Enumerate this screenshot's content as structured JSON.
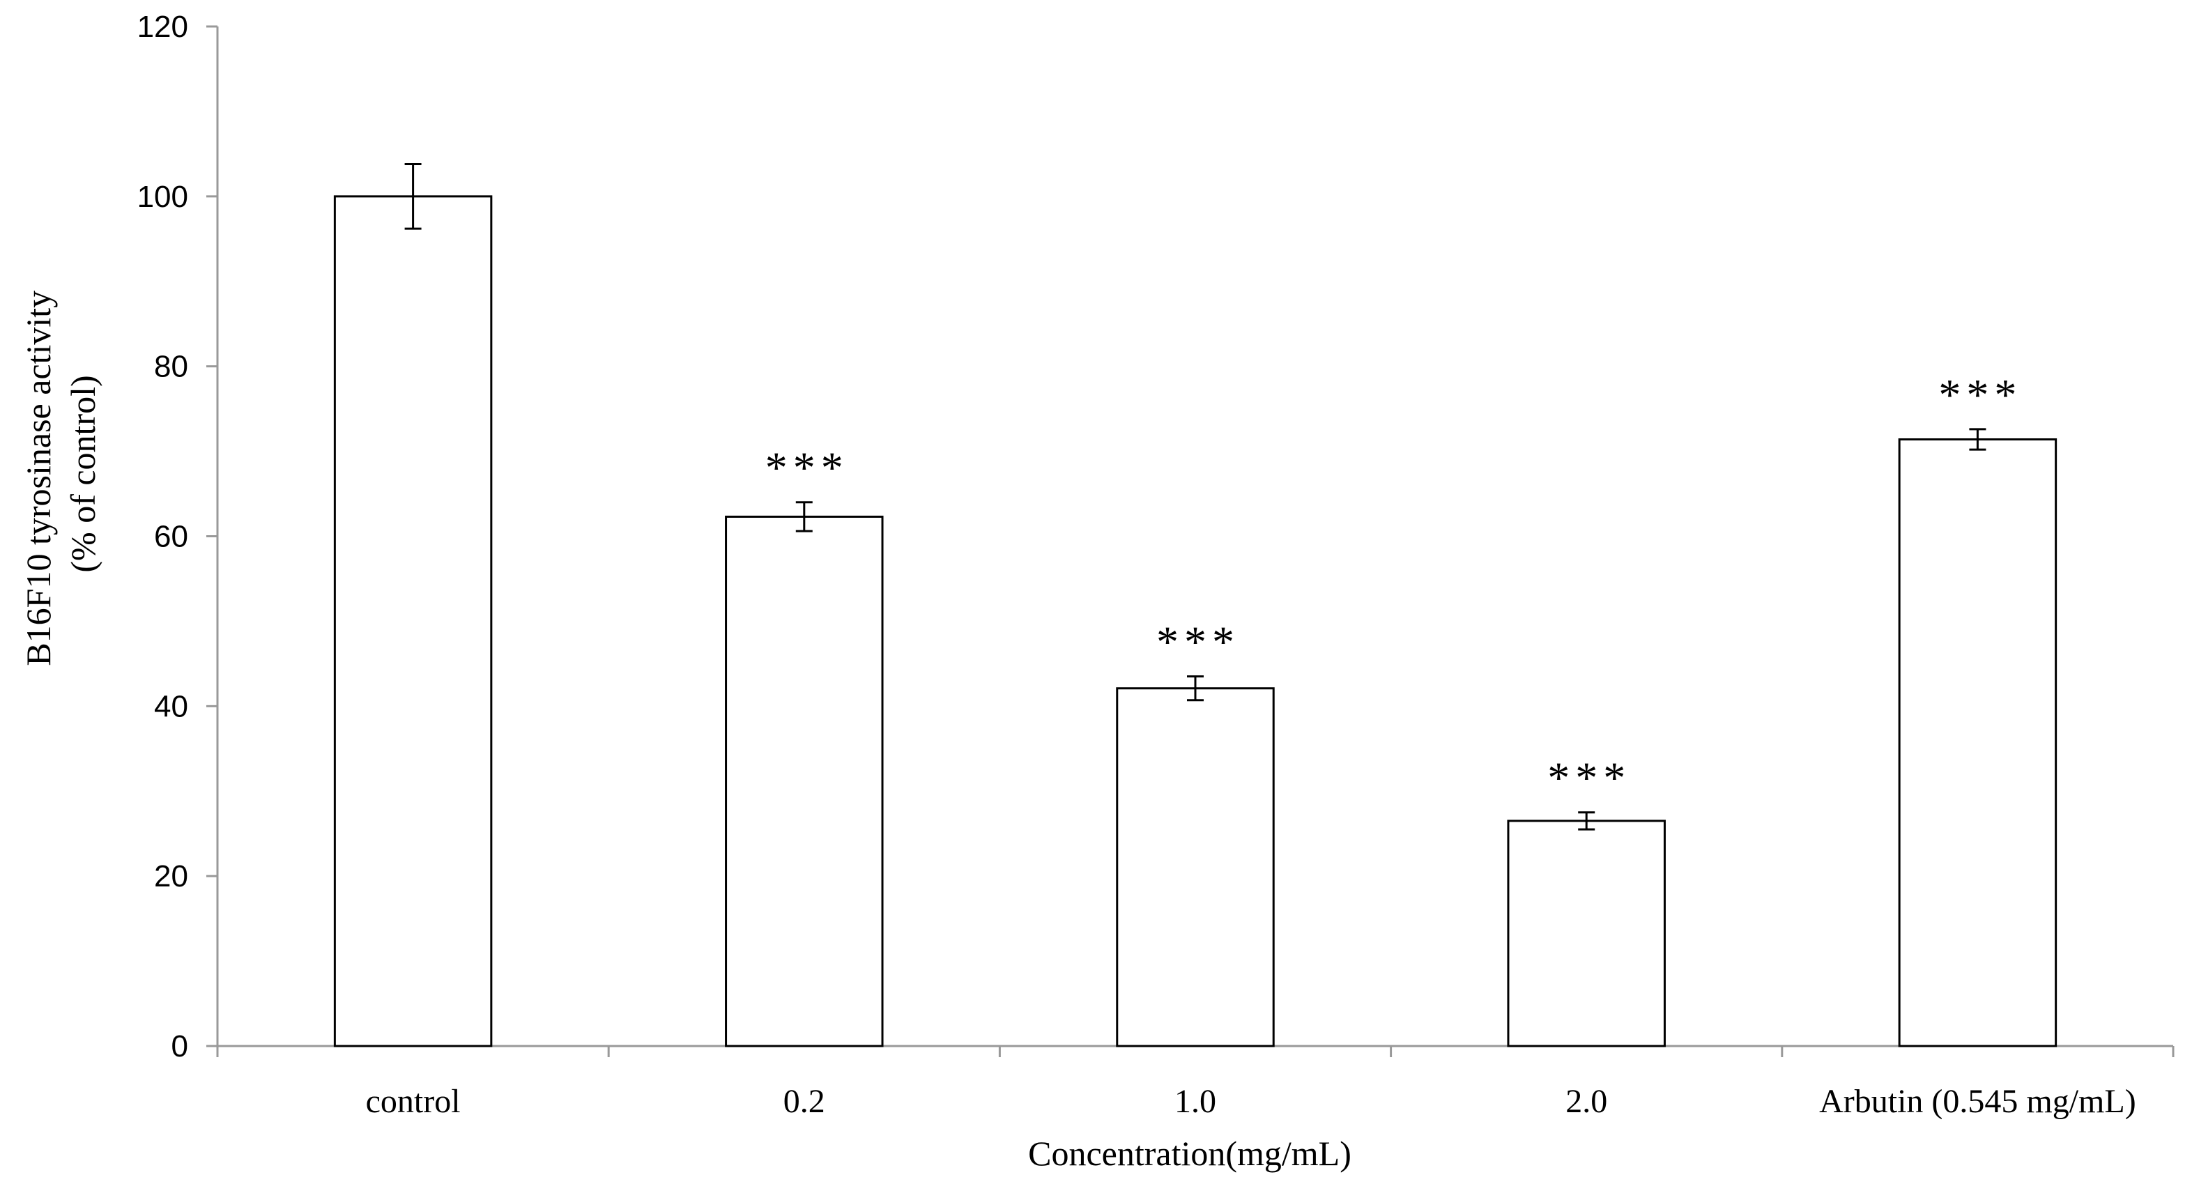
{
  "chart_data": {
    "type": "bar",
    "title": "",
    "categories": [
      "control",
      "0.2",
      "1.0",
      "2.0",
      "Arbutin (0.545 mg/mL)"
    ],
    "values": [
      100,
      62.3,
      42.1,
      26.5,
      71.4
    ],
    "errors": [
      3.8,
      1.7,
      1.4,
      1.0,
      1.2
    ],
    "significance": [
      "",
      "***",
      "***",
      "***",
      "***"
    ],
    "xlabel": "Concentration(mg/mL)",
    "ylabel_lines": [
      "B16F10 tyrosinase  activity",
      "(% of control)"
    ],
    "ylim": [
      0,
      120
    ],
    "yticks": [
      0,
      20,
      40,
      60,
      80,
      100,
      120
    ],
    "grid": false,
    "legend": "none",
    "colors": {
      "bar_fill": "#ffffff",
      "bar_stroke": "#000000",
      "axis": "#999999"
    }
  }
}
